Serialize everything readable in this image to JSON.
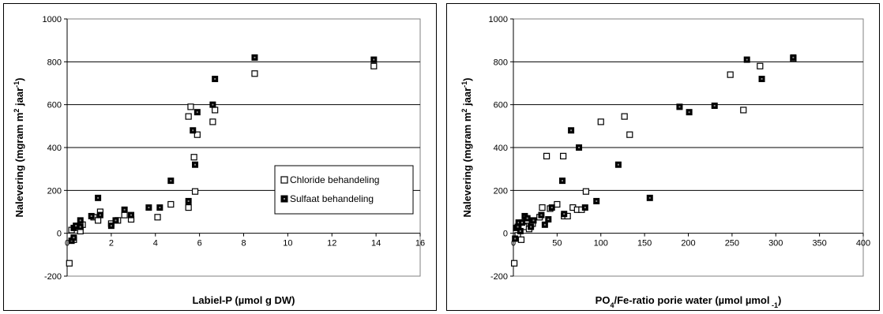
{
  "chart_data": [
    {
      "type": "scatter",
      "xlabel_parts": [
        "Labiel-P (µmol g DW)"
      ],
      "ylabel_parts": [
        "Nalevering (mgram m",
        "2",
        "  jaar",
        "-1",
        ")"
      ],
      "xlim": [
        0,
        16
      ],
      "ylim": [
        -200,
        1000
      ],
      "xticks": [
        0,
        2,
        4,
        6,
        8,
        10,
        12,
        14,
        16
      ],
      "yticks": [
        -200,
        0,
        200,
        400,
        600,
        800,
        1000
      ],
      "gridlines": "horizontal",
      "legend": {
        "placement": "center-right",
        "entries": [
          "Chloride behandeling",
          "Sulfaat behandeling"
        ]
      },
      "series": [
        {
          "name": "Chloride behandeling",
          "marker": "open-square",
          "points": [
            [
              0.1,
              -140
            ],
            [
              0.2,
              15
            ],
            [
              0.3,
              -30
            ],
            [
              0.6,
              10
            ],
            [
              0.7,
              40
            ],
            [
              1.2,
              75
            ],
            [
              1.4,
              60
            ],
            [
              1.5,
              100
            ],
            [
              2.0,
              45
            ],
            [
              2.3,
              60
            ],
            [
              2.6,
              85
            ],
            [
              2.9,
              65
            ],
            [
              4.1,
              75
            ],
            [
              4.7,
              135
            ],
            [
              5.5,
              120
            ],
            [
              5.5,
              545
            ],
            [
              5.6,
              590
            ],
            [
              5.75,
              355
            ],
            [
              5.8,
              195
            ],
            [
              5.9,
              460
            ],
            [
              6.6,
              520
            ],
            [
              6.7,
              575
            ],
            [
              8.5,
              745
            ],
            [
              13.9,
              780
            ]
          ]
        },
        {
          "name": "Sulfaat behandeling",
          "marker": "filled-square",
          "points": [
            [
              0.2,
              -35
            ],
            [
              0.3,
              -20
            ],
            [
              0.3,
              25
            ],
            [
              0.4,
              35
            ],
            [
              0.6,
              60
            ],
            [
              0.6,
              30
            ],
            [
              1.1,
              80
            ],
            [
              1.4,
              165
            ],
            [
              1.5,
              85
            ],
            [
              2.0,
              35
            ],
            [
              2.2,
              60
            ],
            [
              2.6,
              110
            ],
            [
              2.9,
              85
            ],
            [
              3.7,
              120
            ],
            [
              4.2,
              120
            ],
            [
              4.7,
              245
            ],
            [
              5.5,
              150
            ],
            [
              5.8,
              320
            ],
            [
              5.7,
              480
            ],
            [
              5.9,
              565
            ],
            [
              6.6,
              600
            ],
            [
              6.7,
              720
            ],
            [
              8.5,
              820
            ],
            [
              13.9,
              810
            ]
          ]
        }
      ]
    },
    {
      "type": "scatter",
      "xlabel_parts": [
        "PO",
        "4",
        "/Fe-ratio porie water (µmol µmol",
        " -1",
        ")"
      ],
      "ylabel_parts": [
        "Nalevering (mgram m",
        "2",
        "  jaar",
        "-1",
        ")"
      ],
      "xlim": [
        0,
        400
      ],
      "ylim": [
        -200,
        1000
      ],
      "xticks": [
        0,
        50,
        100,
        150,
        200,
        250,
        300,
        350,
        400
      ],
      "yticks": [
        -200,
        0,
        200,
        400,
        600,
        800,
        1000
      ],
      "gridlines": "horizontal",
      "series": [
        {
          "name": "Chloride behandeling",
          "marker": "open-square",
          "points": [
            [
              1,
              -140
            ],
            [
              5,
              -10
            ],
            [
              9,
              -30
            ],
            [
              12,
              30
            ],
            [
              15,
              60
            ],
            [
              18,
              20
            ],
            [
              22,
              45
            ],
            [
              30,
              75
            ],
            [
              33,
              120
            ],
            [
              38,
              360
            ],
            [
              42,
              115
            ],
            [
              50,
              135
            ],
            [
              57,
              360
            ],
            [
              58,
              80
            ],
            [
              62,
              80
            ],
            [
              68,
              120
            ],
            [
              73,
              110
            ],
            [
              78,
              110
            ],
            [
              83,
              195
            ],
            [
              100,
              520
            ],
            [
              127,
              545
            ],
            [
              133,
              460
            ],
            [
              248,
              740
            ],
            [
              263,
              575
            ],
            [
              282,
              780
            ],
            [
              320,
              815
            ]
          ]
        },
        {
          "name": "Sulfaat behandeling",
          "marker": "filled-square",
          "points": [
            [
              2,
              -25
            ],
            [
              3,
              25
            ],
            [
              5,
              30
            ],
            [
              6,
              50
            ],
            [
              8,
              10
            ],
            [
              10,
              50
            ],
            [
              13,
              80
            ],
            [
              16,
              70
            ],
            [
              20,
              30
            ],
            [
              23,
              60
            ],
            [
              32,
              85
            ],
            [
              36,
              40
            ],
            [
              40,
              65
            ],
            [
              44,
              120
            ],
            [
              56,
              245
            ],
            [
              58,
              90
            ],
            [
              66,
              480
            ],
            [
              75,
              400
            ],
            [
              82,
              120
            ],
            [
              95,
              150
            ],
            [
              120,
              320
            ],
            [
              156,
              165
            ],
            [
              190,
              590
            ],
            [
              201,
              565
            ],
            [
              230,
              595
            ],
            [
              267,
              810
            ],
            [
              284,
              720
            ],
            [
              320,
              820
            ]
          ]
        }
      ]
    }
  ]
}
